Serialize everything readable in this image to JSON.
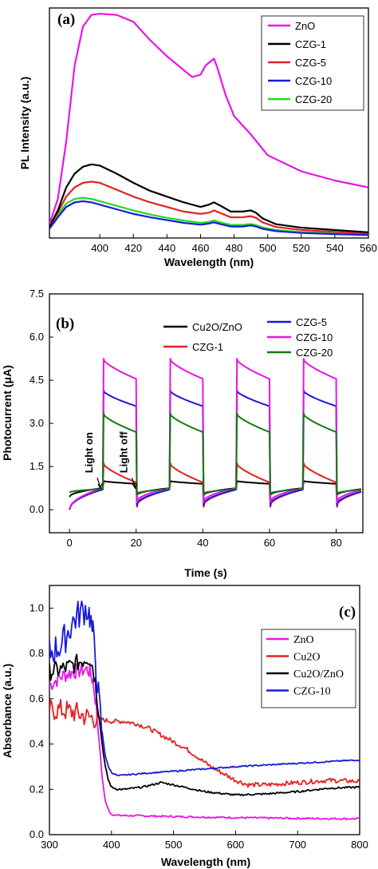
{
  "chart_data": [
    {
      "type": "line",
      "panel_label": "(a)",
      "xlabel": "Wavelength (nm)",
      "ylabel": "PL Intensity (a.u.)",
      "xlim": [
        370,
        560
      ],
      "ylim": [
        0,
        1
      ],
      "xticks": [
        400,
        420,
        440,
        460,
        480,
        500,
        520,
        540,
        560
      ],
      "yticks": [],
      "legend_position": "top-right",
      "series": [
        {
          "name": "ZnO",
          "color": "#e815e8",
          "x": [
            370,
            375,
            380,
            385,
            390,
            395,
            400,
            410,
            420,
            430,
            440,
            450,
            455,
            460,
            463,
            468,
            470,
            475,
            480,
            490,
            500,
            520,
            540,
            560
          ],
          "y": [
            0.06,
            0.17,
            0.42,
            0.75,
            0.92,
            0.97,
            0.975,
            0.97,
            0.94,
            0.86,
            0.79,
            0.73,
            0.7,
            0.71,
            0.75,
            0.78,
            0.74,
            0.62,
            0.53,
            0.45,
            0.36,
            0.29,
            0.25,
            0.22
          ]
        },
        {
          "name": "CZG-1",
          "color": "#000000",
          "x": [
            370,
            375,
            380,
            385,
            390,
            395,
            400,
            410,
            420,
            430,
            440,
            450,
            460,
            465,
            468,
            472,
            478,
            485,
            490,
            493,
            497,
            505,
            520,
            540,
            560
          ],
          "y": [
            0.05,
            0.12,
            0.22,
            0.28,
            0.31,
            0.32,
            0.315,
            0.28,
            0.24,
            0.205,
            0.18,
            0.155,
            0.135,
            0.145,
            0.155,
            0.14,
            0.115,
            0.115,
            0.12,
            0.11,
            0.085,
            0.06,
            0.045,
            0.035,
            0.025
          ]
        },
        {
          "name": "CZG-5",
          "color": "#e52121",
          "x": [
            370,
            375,
            380,
            385,
            390,
            395,
            400,
            410,
            420,
            430,
            440,
            450,
            460,
            465,
            468,
            472,
            478,
            485,
            490,
            493,
            497,
            505,
            520,
            540,
            560
          ],
          "y": [
            0.05,
            0.11,
            0.18,
            0.22,
            0.24,
            0.245,
            0.24,
            0.21,
            0.18,
            0.155,
            0.135,
            0.115,
            0.105,
            0.11,
            0.12,
            0.108,
            0.09,
            0.09,
            0.095,
            0.088,
            0.068,
            0.048,
            0.035,
            0.027,
            0.02
          ]
        },
        {
          "name": "CZG-10",
          "color": "#1a1ad8",
          "x": [
            370,
            375,
            380,
            385,
            390,
            395,
            400,
            410,
            420,
            430,
            440,
            450,
            460,
            465,
            468,
            472,
            478,
            485,
            490,
            493,
            497,
            505,
            520,
            540,
            560
          ],
          "y": [
            0.04,
            0.09,
            0.135,
            0.155,
            0.16,
            0.155,
            0.145,
            0.125,
            0.105,
            0.09,
            0.078,
            0.066,
            0.058,
            0.063,
            0.068,
            0.06,
            0.05,
            0.05,
            0.055,
            0.05,
            0.04,
            0.03,
            0.022,
            0.017,
            0.013
          ]
        },
        {
          "name": "CZG-20",
          "color": "#22dd22",
          "x": [
            370,
            375,
            380,
            385,
            390,
            395,
            400,
            410,
            420,
            430,
            440,
            450,
            460,
            465,
            468,
            472,
            478,
            485,
            490,
            493,
            497,
            505,
            520,
            540,
            560
          ],
          "y": [
            0.045,
            0.1,
            0.15,
            0.17,
            0.175,
            0.17,
            0.16,
            0.14,
            0.12,
            0.102,
            0.088,
            0.076,
            0.066,
            0.07,
            0.076,
            0.068,
            0.057,
            0.057,
            0.061,
            0.056,
            0.046,
            0.035,
            0.026,
            0.02,
            0.016
          ]
        }
      ]
    },
    {
      "type": "line",
      "panel_label": "(b)",
      "xlabel": "Time (s)",
      "ylabel": "Photocurrent (μA)",
      "xlim": [
        -6,
        88
      ],
      "ylim": [
        -0.8,
        7.5
      ],
      "xticks": [
        0,
        20,
        40,
        60,
        80
      ],
      "yticks": [
        0.0,
        1.5,
        3.0,
        4.5,
        6.0,
        7.5
      ],
      "legend_position": "top",
      "annotations": [
        {
          "text": "Light on",
          "x": 9.3,
          "y": 0.72
        },
        {
          "text": "Light off",
          "x": 19.7,
          "y": 0.72
        }
      ],
      "series": [
        {
          "name": "Cu2O/ZnO",
          "color": "#000000",
          "dark_start": 0.45,
          "dark_end": 0.75,
          "peak": 1.0,
          "plateau": 0.9,
          "fall_to": 0.5
        },
        {
          "name": "CZG-1",
          "color": "#e52121",
          "dark_start": 0.0,
          "dark_end": 0.7,
          "peak": 1.62,
          "plateau": 0.95,
          "fall_to": 0.1
        },
        {
          "name": "CZG-5",
          "color": "#1a1ad8",
          "dark_start": 0.0,
          "dark_end": 0.7,
          "peak": 4.15,
          "plateau": 3.6,
          "fall_to": 0.15
        },
        {
          "name": "CZG-10",
          "color": "#e815e8",
          "dark_start": 0.0,
          "dark_end": 0.75,
          "peak": 5.25,
          "plateau": 4.55,
          "fall_to": 0.25
        },
        {
          "name": "CZG-20",
          "color": "#137a13",
          "dark_start": 0.6,
          "dark_end": 0.72,
          "peak": 3.35,
          "plateau": 2.7,
          "fall_to": 0.55
        }
      ]
    },
    {
      "type": "line",
      "panel_label": "(c)",
      "xlabel": "Wavelength (nm)",
      "ylabel": "Absorbance (a.u.)",
      "xlim": [
        300,
        800
      ],
      "ylim": [
        0.0,
        1.1
      ],
      "xticks": [
        300,
        400,
        500,
        600,
        700,
        800
      ],
      "yticks": [
        0.0,
        0.2,
        0.4,
        0.6,
        0.8,
        1.0
      ],
      "legend_position": "right",
      "series": [
        {
          "name": "ZnO",
          "color": "#e815e8",
          "x": [
            300,
            320,
            340,
            360,
            365,
            370,
            375,
            380,
            385,
            390,
            395,
            400,
            410,
            450,
            500,
            600,
            700,
            800
          ],
          "y": [
            0.66,
            0.7,
            0.72,
            0.73,
            0.72,
            0.68,
            0.58,
            0.42,
            0.25,
            0.15,
            0.11,
            0.09,
            0.085,
            0.083,
            0.08,
            0.075,
            0.072,
            0.07
          ]
        },
        {
          "name": "Cu2O",
          "color": "#e52121",
          "x": [
            300,
            320,
            340,
            360,
            380,
            400,
            420,
            440,
            460,
            480,
            500,
            520,
            540,
            560,
            580,
            600,
            620,
            650,
            700,
            750,
            800
          ],
          "y": [
            0.55,
            0.55,
            0.54,
            0.52,
            0.51,
            0.5,
            0.5,
            0.49,
            0.47,
            0.44,
            0.41,
            0.38,
            0.34,
            0.3,
            0.27,
            0.24,
            0.22,
            0.22,
            0.23,
            0.24,
            0.235
          ]
        },
        {
          "name": "Cu2O/ZnO",
          "color": "#000000",
          "x": [
            300,
            320,
            340,
            360,
            365,
            370,
            375,
            380,
            385,
            390,
            395,
            400,
            410,
            420,
            450,
            480,
            500,
            550,
            600,
            650,
            700,
            750,
            800
          ],
          "y": [
            0.72,
            0.73,
            0.75,
            0.78,
            0.78,
            0.74,
            0.66,
            0.52,
            0.4,
            0.3,
            0.24,
            0.21,
            0.2,
            0.2,
            0.21,
            0.23,
            0.22,
            0.19,
            0.175,
            0.18,
            0.19,
            0.205,
            0.21
          ]
        },
        {
          "name": "CZG-10",
          "color": "#1a1ad8",
          "x": [
            300,
            320,
            340,
            350,
            360,
            365,
            370,
            375,
            380,
            385,
            390,
            395,
            400,
            410,
            450,
            500,
            600,
            700,
            800
          ],
          "y": [
            0.8,
            0.84,
            0.95,
            0.98,
            1.0,
            0.97,
            0.88,
            0.75,
            0.58,
            0.45,
            0.35,
            0.3,
            0.275,
            0.26,
            0.27,
            0.28,
            0.3,
            0.315,
            0.33
          ]
        }
      ]
    }
  ]
}
